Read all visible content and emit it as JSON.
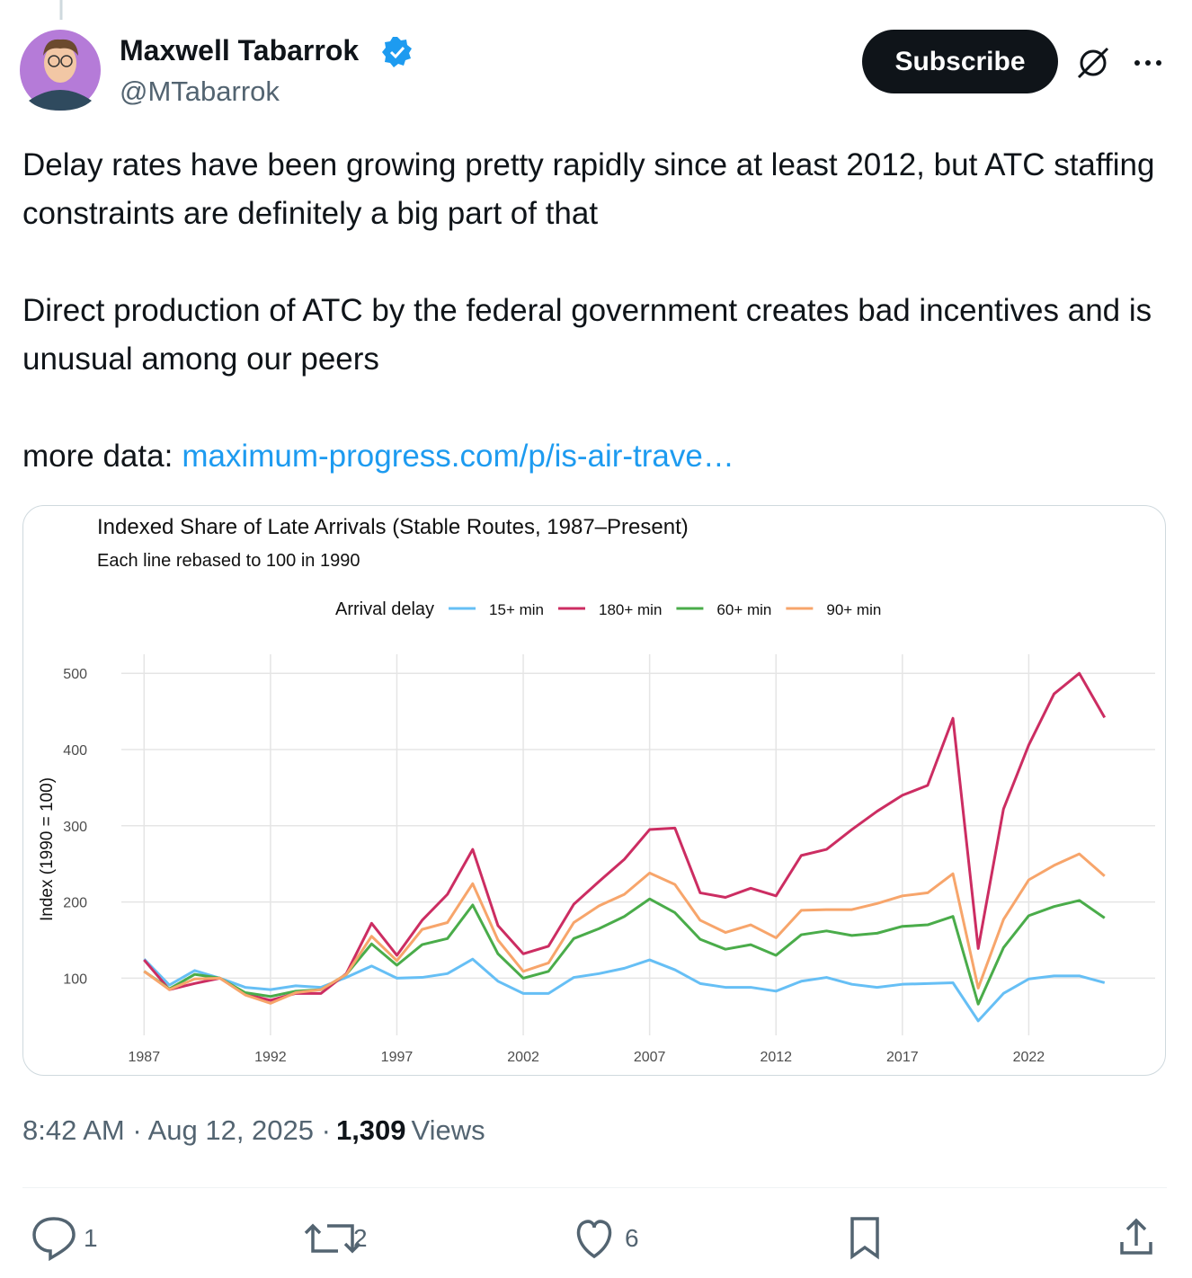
{
  "tweet": {
    "author": {
      "name": "Maxwell Tabarrok",
      "handle": "@MTabarrok"
    },
    "subscribe": "Subscribe",
    "paragraphs": [
      "Delay rates have been growing pretty rapidly since at least 2012, but ATC staffing constraints are definitely a big part of that",
      "Direct production of ATC by the federal government creates bad incentives and is unusual among our peers"
    ],
    "more_label": "more data:",
    "link": "maximum-progress.com/p/is-air-trave…",
    "timestamp": "8:42 AM · Aug 12, 2025 ·",
    "views": "1,309",
    "views_label": "Views",
    "replies": "1",
    "reposts": "2",
    "likes": "6"
  },
  "chart_data": {
    "type": "line",
    "title": "Indexed Share of Late Arrivals (Stable Routes, 1987–Present)",
    "subtitle": "Each line rebased to 100 in 1990",
    "legend_title": "Arrival delay",
    "y_label": "Index (1990 = 100)",
    "x": [
      1987,
      1988,
      1989,
      1990,
      1991,
      1992,
      1993,
      1994,
      1995,
      1996,
      1997,
      1998,
      1999,
      2000,
      2001,
      2002,
      2003,
      2004,
      2005,
      2006,
      2007,
      2008,
      2009,
      2010,
      2011,
      2012,
      2013,
      2014,
      2015,
      2016,
      2017,
      2018,
      2019,
      2020,
      2021,
      2022,
      2023,
      2024,
      2025
    ],
    "xlim": [
      1986.1,
      2027
    ],
    "xticks": [
      1987,
      1992,
      1997,
      2002,
      2007,
      2012,
      2017,
      2022
    ],
    "ylim": [
      25,
      525
    ],
    "yticks": [
      100,
      200,
      300,
      400,
      500
    ],
    "grid": true,
    "legend": "top",
    "series": [
      {
        "name": "15+ min",
        "color": "#66bff5",
        "values": [
          125,
          91,
          110,
          100,
          88,
          85,
          90,
          88,
          101,
          116,
          100,
          101,
          106,
          125,
          96,
          80,
          80,
          101,
          106,
          113,
          124,
          111,
          93,
          88,
          88,
          83,
          96,
          101,
          92,
          88,
          92,
          93,
          94,
          44,
          80,
          99,
          103,
          103,
          94
        ]
      },
      {
        "name": "180+ min",
        "color": "#cc2d62",
        "values": [
          124,
          85,
          93,
          100,
          79,
          71,
          80,
          80,
          106,
          172,
          130,
          176,
          210,
          269,
          169,
          132,
          142,
          197,
          227,
          256,
          295,
          297,
          212,
          206,
          218,
          208,
          261,
          269,
          295,
          319,
          340,
          353,
          441,
          139,
          322,
          406,
          473,
          500,
          442
        ]
      },
      {
        "name": "60+ min",
        "color": "#4aac4a",
        "values": [
          109,
          86,
          105,
          100,
          81,
          76,
          83,
          85,
          105,
          145,
          117,
          144,
          152,
          196,
          132,
          100,
          109,
          152,
          165,
          181,
          204,
          186,
          151,
          138,
          144,
          130,
          157,
          162,
          156,
          159,
          168,
          170,
          181,
          66,
          140,
          182,
          194,
          202,
          179
        ]
      },
      {
        "name": "90+ min",
        "color": "#f7a56b",
        "values": [
          109,
          85,
          99,
          100,
          78,
          67,
          81,
          85,
          105,
          155,
          123,
          164,
          173,
          224,
          150,
          109,
          120,
          173,
          195,
          210,
          238,
          223,
          176,
          160,
          170,
          153,
          189,
          190,
          190,
          198,
          208,
          212,
          237,
          87,
          177,
          229,
          248,
          263,
          234
        ]
      }
    ]
  }
}
